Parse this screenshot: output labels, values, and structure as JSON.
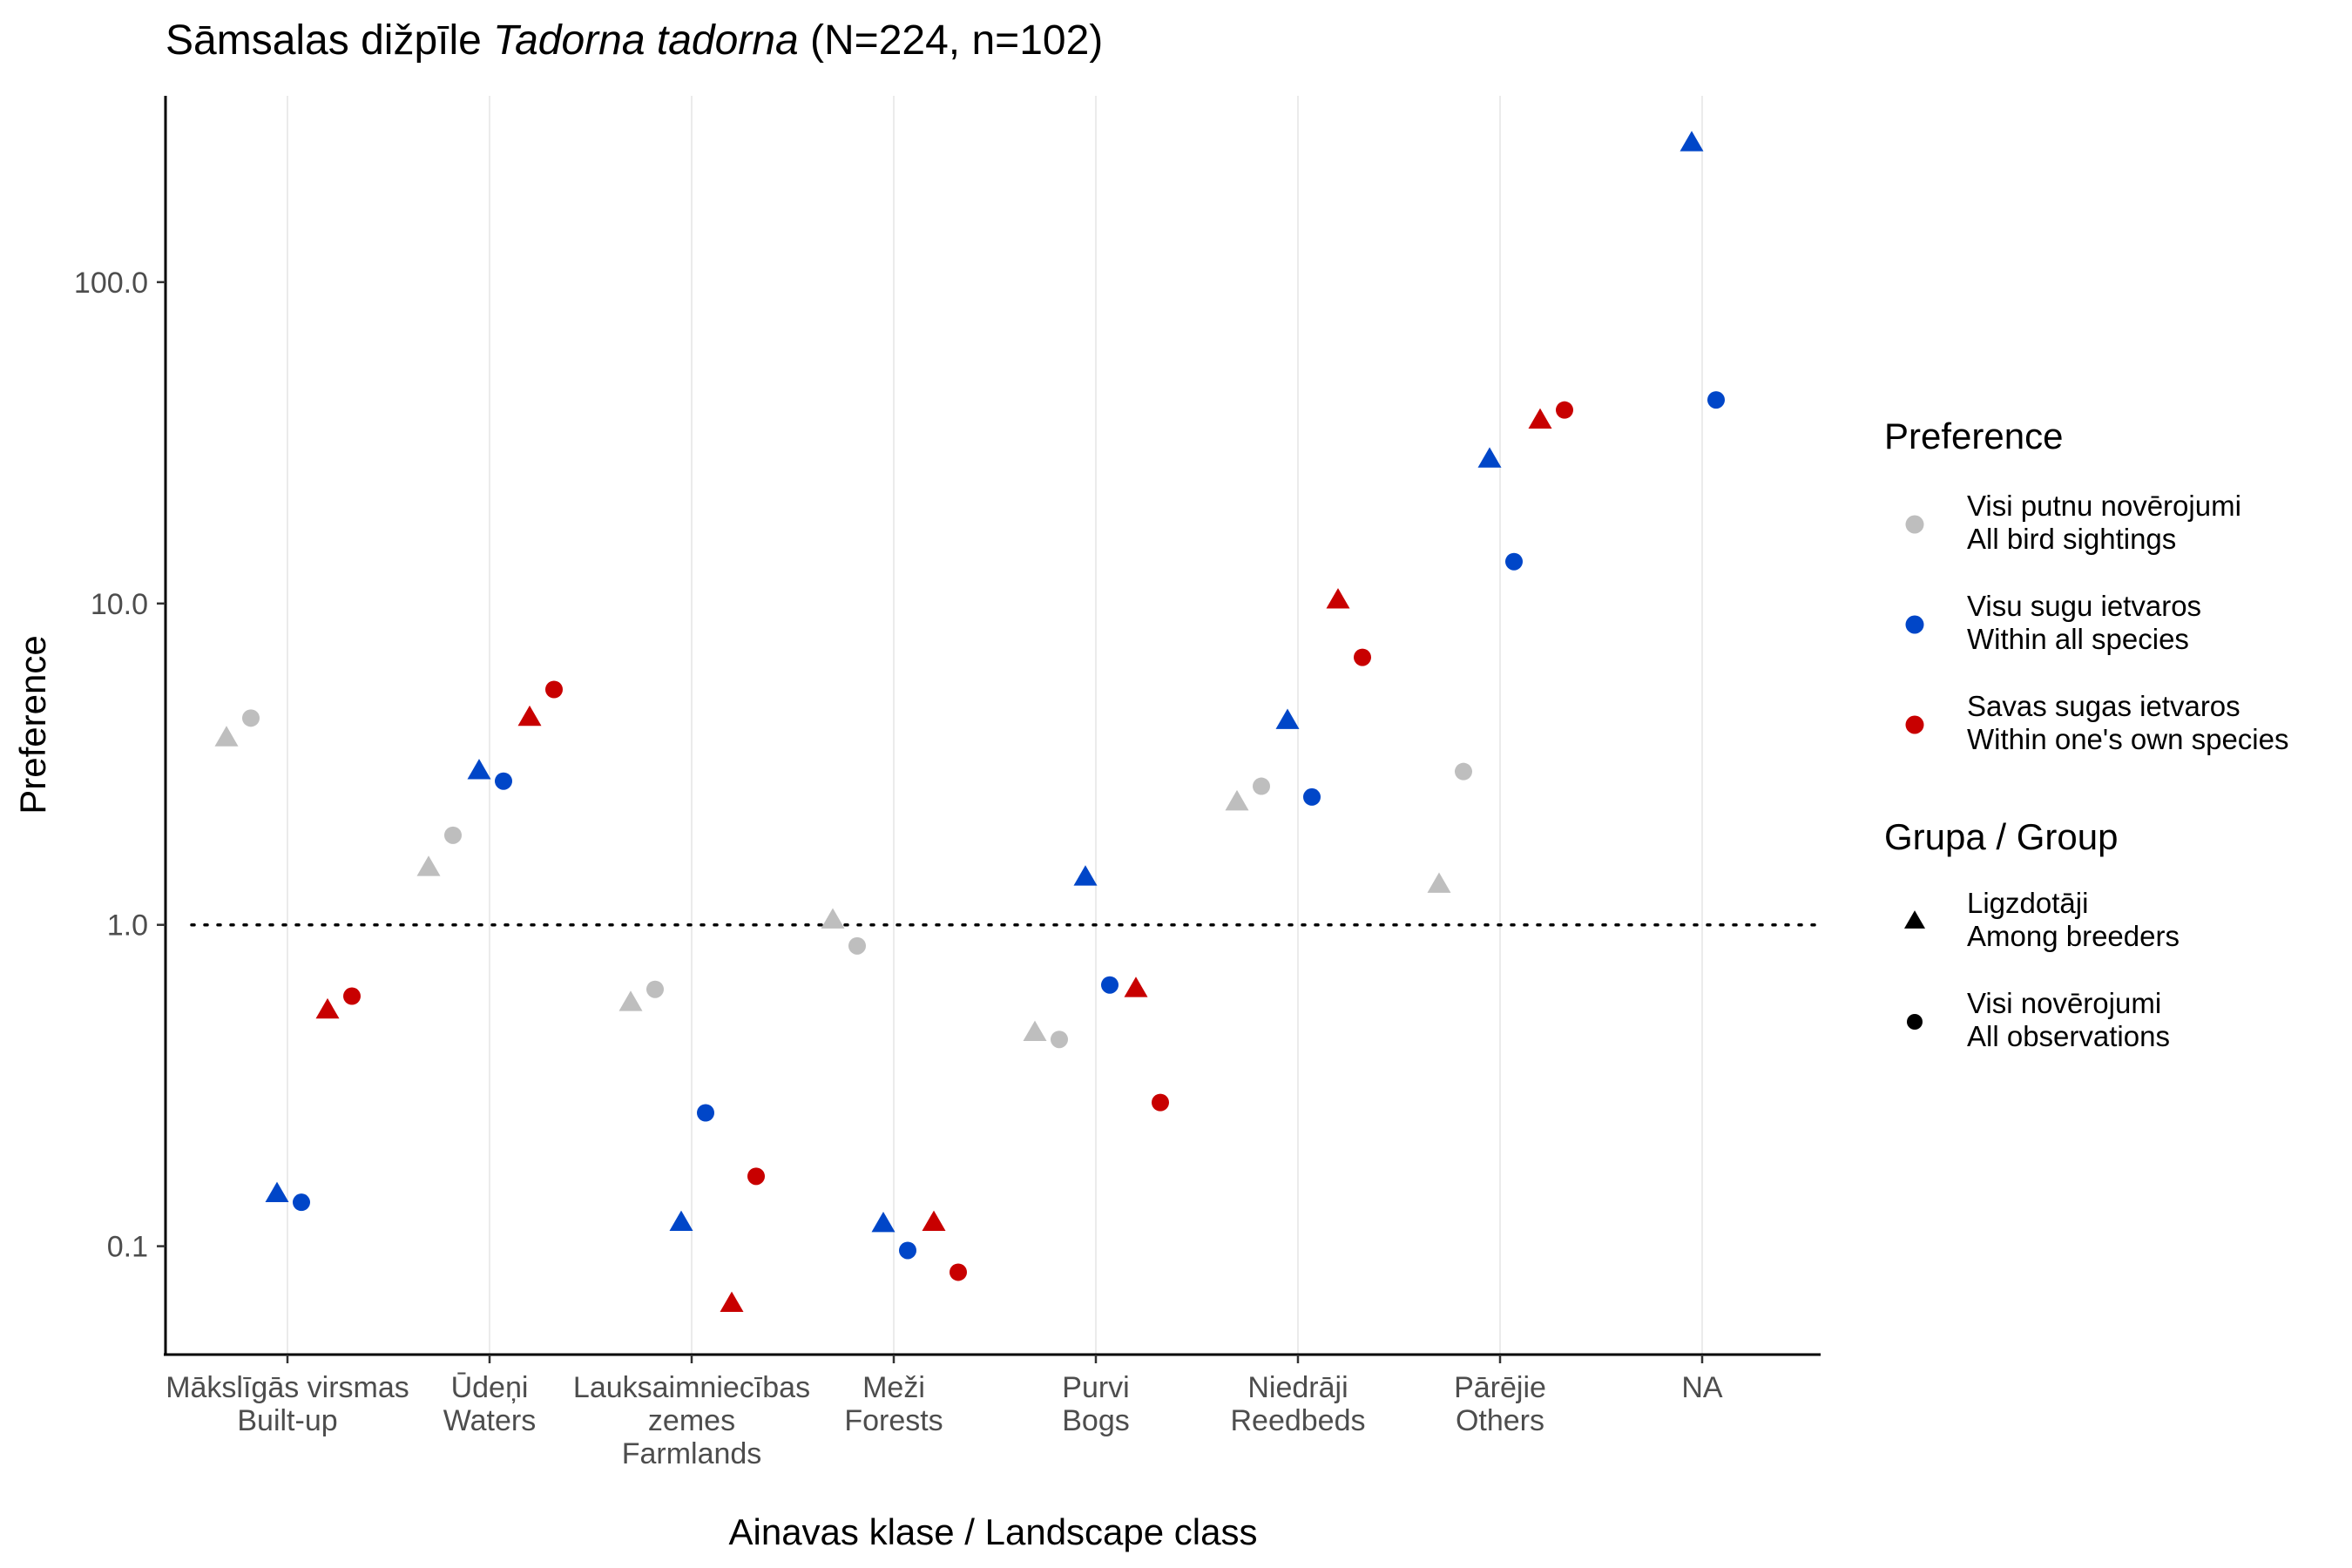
{
  "chart_data": {
    "type": "scatter",
    "title": {
      "prefix": "Sāmsalas dižpīle ",
      "italic": "Tadorna tadorna",
      "suffix": " (N=224, n=102)"
    },
    "xlabel": "Ainavas klase / Landscape class",
    "ylabel": "Preference",
    "y_scale": "log10",
    "ylim": [
      0.046,
      380
    ],
    "yticks": [
      0.1,
      1,
      10,
      100
    ],
    "ytick_labels": [
      "0.1",
      "1.0",
      "10.0",
      "100.0"
    ],
    "reference_line": 1,
    "grid": "vertical-major",
    "categories": [
      [
        "Mākslīgās virsmas",
        "Built-up"
      ],
      [
        "Ūdeņi",
        "Waters"
      ],
      [
        "Lauksaimniecības",
        "zemes",
        "Farmlands"
      ],
      [
        "Meži",
        "Forests"
      ],
      [
        "Purvi",
        "Bogs"
      ],
      [
        "Niedrāji",
        "Reedbeds"
      ],
      [
        "Pārējie",
        "Others"
      ],
      [
        "NA"
      ]
    ],
    "colors": {
      "all_bird_sightings": "#bebebe",
      "within_all_species": "#0046c8",
      "within_own_species": "#c80000"
    },
    "series": [
      {
        "name": [
          "Visi putnu novērojumi",
          "All bird sightings"
        ],
        "color_key": "all_bird_sightings",
        "breeders": [
          3.8,
          1.5,
          0.57,
          1.03,
          0.46,
          2.4,
          1.33,
          null
        ],
        "all_observations": [
          4.4,
          1.9,
          0.63,
          0.86,
          0.44,
          2.7,
          3.0,
          null
        ]
      },
      {
        "name": [
          "Visu sugu ietvaros",
          "Within all species"
        ],
        "color_key": "within_all_species",
        "breeders": [
          0.145,
          3.0,
          0.118,
          0.117,
          1.4,
          4.3,
          28.0,
          270.0
        ],
        "all_observations": [
          0.137,
          2.8,
          0.26,
          0.097,
          0.65,
          2.5,
          13.5,
          43.0
        ]
      },
      {
        "name": [
          "Savas sugas ietvaros",
          "Within one's own species"
        ],
        "color_key": "within_own_species",
        "breeders": [
          0.54,
          4.4,
          0.066,
          0.118,
          0.63,
          10.2,
          37.0,
          null
        ],
        "all_observations": [
          0.6,
          5.4,
          0.165,
          0.083,
          0.28,
          6.8,
          40.0,
          null
        ]
      }
    ],
    "legend": {
      "position": "right",
      "preference": {
        "title": "Preference",
        "entries": [
          [
            "Visi putnu novērojumi",
            "All bird sightings"
          ],
          [
            "Visu sugu ietvaros",
            "Within all species"
          ],
          [
            "Savas sugas ietvaros",
            "Within one's own species"
          ]
        ]
      },
      "group": {
        "title": "Grupa / Group",
        "entries": [
          {
            "shape": "triangle",
            "label": [
              "Ligzdotāji",
              "Among breeders"
            ]
          },
          {
            "shape": "circle",
            "label": [
              "Visi novērojumi",
              "All observations"
            ]
          }
        ]
      }
    }
  }
}
